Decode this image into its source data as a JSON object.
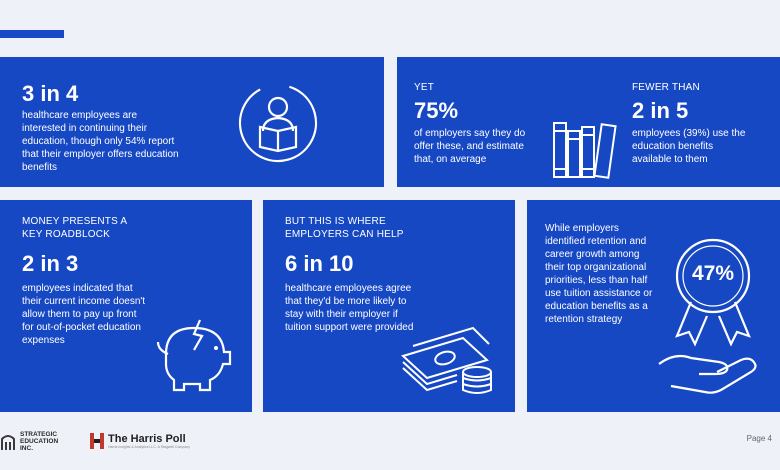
{
  "card1": {
    "stat": "3 in 4",
    "text": "healthcare employees are interested in continuing their education, though only 54% report that their employer offers education benefits"
  },
  "card2": {
    "left": {
      "label": "YET",
      "stat": "75%",
      "text": "of employers say they do offer these, and estimate that, on average"
    },
    "right": {
      "label": "FEWER THAN",
      "stat": "2 in 5",
      "text": "employees (39%) use the education benefits available to them"
    }
  },
  "card3": {
    "label": "MONEY PRESENTS A KEY ROADBLOCK",
    "stat": "2 in 3",
    "text": "employees indicated that their current income doesn't allow them to pay up front for out-of-pocket education expenses"
  },
  "card4": {
    "label": "BUT THIS IS WHERE EMPLOYERS CAN HELP",
    "stat": "6 in 10",
    "text": "healthcare employees agree that they'd be more likely to stay with their employer if tuition support were provided"
  },
  "card5": {
    "text": "While employers identified retention and career growth among their top organizational priorities, less than half use tuition assistance or education benefits as a retention strategy",
    "badge": "47%"
  },
  "footer": {
    "se_line1": "STRATEGIC",
    "se_line2": "EDUCATION",
    "se_line3": "INC.",
    "harris_name": "The Harris Poll",
    "harris_sub": "Harris Insights & Analytics LLC, A Stagwell Company",
    "page": "Page 4"
  },
  "colors": {
    "card": "#1748c4",
    "background": "#eef1f8"
  },
  "icons": [
    "reading-person-icon",
    "books-icon",
    "broken-piggy-bank-icon",
    "money-stack-icon",
    "award-hand-icon"
  ]
}
